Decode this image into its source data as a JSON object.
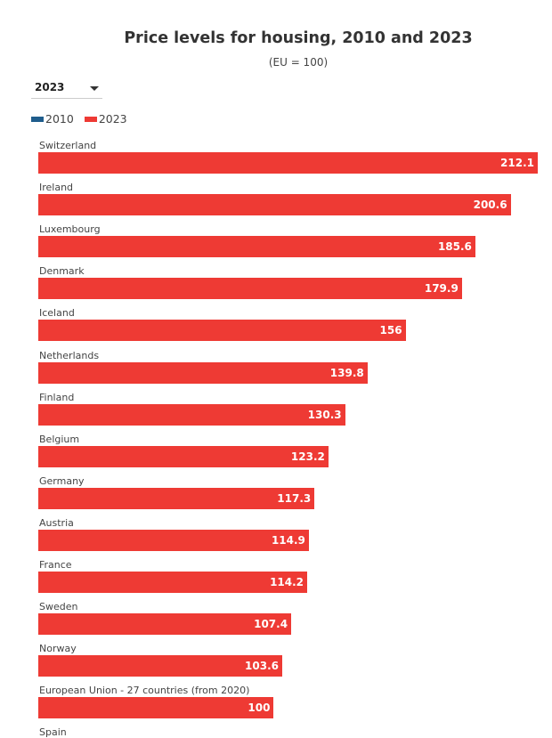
{
  "title": "Price levels for housing, 2010 and 2023",
  "subtitle": "(EU = 100)",
  "year_select": {
    "selected": "2023"
  },
  "legend": [
    {
      "label": "2010",
      "color": "#1f5d8c"
    },
    {
      "label": "2023",
      "color": "#ee3a34"
    }
  ],
  "chart_data": {
    "type": "bar",
    "orientation": "horizontal",
    "title": "Price levels for housing, 2010 and 2023",
    "subtitle": "(EU = 100)",
    "categories": [
      "Switzerland",
      "Ireland",
      "Luxembourg",
      "Denmark",
      "Iceland",
      "Netherlands",
      "Finland",
      "Belgium",
      "Germany",
      "Austria",
      "France",
      "Sweden",
      "Norway",
      "European Union - 27 countries (from 2020)",
      "Spain"
    ],
    "series": [
      {
        "name": "2023",
        "color": "#ee3a34",
        "values": [
          212.1,
          200.6,
          185.6,
          179.9,
          156,
          139.8,
          130.3,
          123.2,
          117.3,
          114.9,
          114.2,
          107.4,
          103.6,
          100,
          null
        ]
      }
    ],
    "xlim": [
      0,
      212.1
    ],
    "grid": false,
    "legend_position": "top-left"
  }
}
